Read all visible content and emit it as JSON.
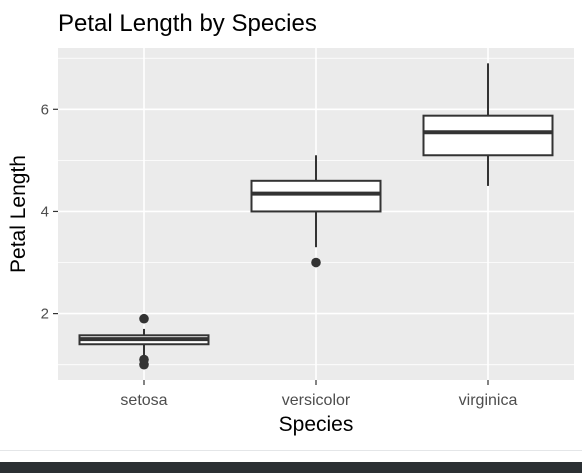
{
  "chart_data": {
    "type": "box",
    "title": "Petal Length by Species",
    "xlabel": "Species",
    "ylabel": "Petal Length",
    "categories": [
      "setosa",
      "versicolor",
      "virginica"
    ],
    "ylim": [
      0.7,
      7.2
    ],
    "y_ticks": [
      2,
      4,
      6
    ],
    "grid": true,
    "theme": "ggplot2 grey",
    "colors": {
      "panel": "#ebebeb",
      "grid": "#ffffff",
      "box_fill": "#ffffff",
      "box_line": "#333333",
      "point": "#333333",
      "text": "#000000",
      "tick_text": "#4d4d4d"
    },
    "boxes": [
      {
        "category": "setosa",
        "min": 1.15,
        "q1": 1.4,
        "median": 1.5,
        "q3": 1.575,
        "max": 1.7,
        "outliers": [
          1.0,
          1.1,
          1.9
        ]
      },
      {
        "category": "versicolor",
        "min": 3.3,
        "q1": 4.0,
        "median": 4.35,
        "q3": 4.6,
        "max": 5.1,
        "outliers": [
          3.0
        ]
      },
      {
        "category": "virginica",
        "min": 4.5,
        "q1": 5.1,
        "median": 5.55,
        "q3": 5.875,
        "max": 6.9,
        "outliers": []
      }
    ]
  }
}
